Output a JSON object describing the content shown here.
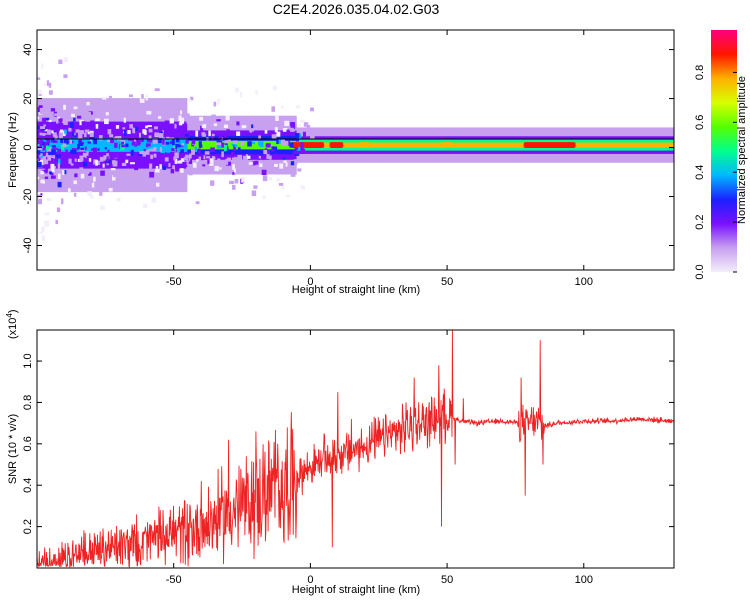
{
  "title": "C2E4.2026.035.04.02.G03",
  "chart_data": [
    {
      "type": "heatmap",
      "xlabel": "Height of straight line (km)",
      "ylabel": "Frequency (Hz)",
      "xlim": [
        -100,
        133
      ],
      "ylim": [
        -50,
        48
      ],
      "xticks": [
        -50,
        0,
        50,
        100
      ],
      "xtick_labels": [
        "-50",
        "0",
        "50",
        "100"
      ],
      "yticks": [
        -40,
        -20,
        0,
        20,
        40
      ],
      "ytick_labels": [
        "-40",
        "-20",
        "0",
        "20",
        "40"
      ],
      "ridge": {
        "center_frequency": 1,
        "segments": [
          {
            "x_start": -100,
            "x_end": -45,
            "peak_amplitude": 0.35,
            "half_width": 8
          },
          {
            "x_start": -45,
            "x_end": -5,
            "peak_amplitude": 0.55,
            "half_width": 5
          },
          {
            "x_start": -5,
            "x_end": 133,
            "peak_amplitude": 0.8,
            "half_width": 3
          }
        ],
        "high_amplitude_spans": [
          {
            "x_start": -7,
            "x_end": 5,
            "amplitude": 0.85
          },
          {
            "x_start": 7,
            "x_end": 12,
            "amplitude": 0.85
          },
          {
            "x_start": 18,
            "x_end": 22,
            "amplitude": 0.8
          },
          {
            "x_start": 48,
            "x_end": 52,
            "amplitude": 0.8
          },
          {
            "x_start": 78,
            "x_end": 97,
            "amplitude": 0.9
          }
        ]
      },
      "colorbar": {
        "label": "Normalized spectral amplitude",
        "range": [
          0,
          0.97
        ],
        "ticks": [
          0.0,
          0.2,
          0.4,
          0.6,
          0.8
        ],
        "tick_labels": [
          "0.0",
          "0.2",
          "0.4",
          "0.6",
          "0.8"
        ],
        "colors": [
          "#f4eefa",
          "#c7a0f0",
          "#7a10ff",
          "#1a22ff",
          "#00b8ff",
          "#00ff8c",
          "#56ff00",
          "#d8ff00",
          "#ffb000",
          "#ff1500",
          "#ff0080"
        ]
      }
    },
    {
      "type": "line",
      "xlabel": "Height of straight line (km)",
      "ylabel": "SNR (10 * v/v)",
      "scale_label": "(x10",
      "scale_exponent": "4",
      "xlim": [
        -100,
        133
      ],
      "ylim": [
        0,
        1.15
      ],
      "xticks": [
        -50,
        0,
        50,
        100
      ],
      "xtick_labels": [
        "-50",
        "0",
        "50",
        "100"
      ],
      "yticks": [
        0.2,
        0.4,
        0.6,
        0.8,
        1.0
      ],
      "ytick_labels": [
        "0.2",
        "0.4",
        "0.6",
        "0.8",
        "1.0"
      ],
      "color": "#ee2222",
      "series": [
        {
          "x": [
            -100,
            -90,
            -80,
            -70,
            -60,
            -50,
            -40,
            -30,
            -20,
            -10,
            -5,
            0,
            5,
            10,
            15,
            20,
            25,
            30,
            35,
            40,
            45,
            48,
            50,
            52,
            55,
            60,
            70,
            77,
            79,
            82,
            85,
            87,
            90,
            100,
            110,
            120,
            133
          ],
          "y": [
            0.02,
            0.05,
            0.08,
            0.1,
            0.13,
            0.17,
            0.2,
            0.27,
            0.33,
            0.4,
            0.44,
            0.49,
            0.52,
            0.55,
            0.56,
            0.59,
            0.62,
            0.65,
            0.67,
            0.7,
            0.72,
            0.73,
            0.74,
            0.73,
            0.71,
            0.7,
            0.71,
            0.7,
            0.69,
            0.71,
            0.69,
            0.69,
            0.7,
            0.71,
            0.71,
            0.72,
            0.71
          ]
        }
      ],
      "spikes": [
        {
          "x": -50,
          "y": 0.3
        },
        {
          "x": -40,
          "y": 0.42
        },
        {
          "x": -30,
          "y": 0.62
        },
        {
          "x": -20,
          "y": 0.66
        },
        {
          "x": -12,
          "y": 0.6
        },
        {
          "x": 5,
          "y": 0.65
        },
        {
          "x": 8,
          "y": 0.1
        },
        {
          "x": 10,
          "y": 0.85
        },
        {
          "x": 15,
          "y": 0.72
        },
        {
          "x": 35,
          "y": 0.8
        },
        {
          "x": 38,
          "y": 0.92
        },
        {
          "x": 40,
          "y": 0.62
        },
        {
          "x": 47,
          "y": 0.98
        },
        {
          "x": 48,
          "y": 0.2
        },
        {
          "x": 52,
          "y": 1.15
        },
        {
          "x": 53,
          "y": 0.5
        },
        {
          "x": 56,
          "y": 0.82
        },
        {
          "x": 77,
          "y": 0.92
        },
        {
          "x": 78.5,
          "y": 0.35
        },
        {
          "x": 80,
          "y": 0.7
        },
        {
          "x": 84,
          "y": 1.1
        },
        {
          "x": 85,
          "y": 0.5
        }
      ]
    }
  ]
}
